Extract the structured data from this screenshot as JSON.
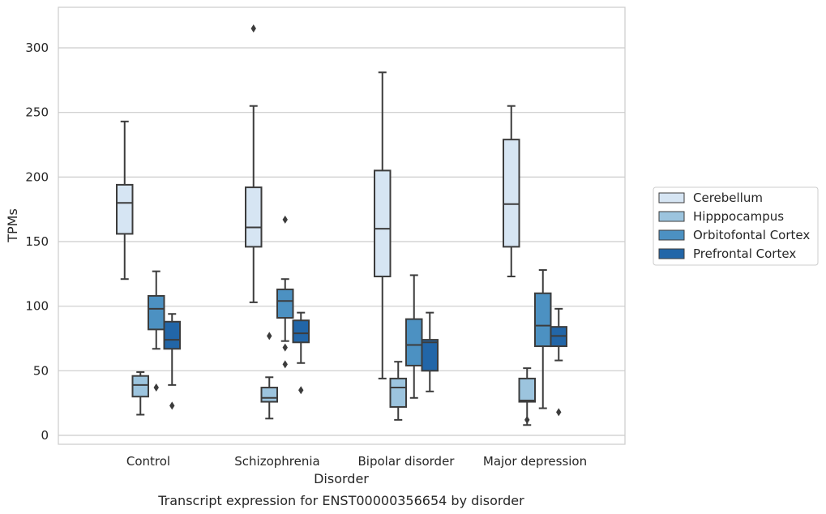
{
  "chart_data": {
    "type": "box",
    "xlabel": "Disorder",
    "ylabel": "TPMs",
    "caption": "Transcript expression for ENST00000356654 by disorder",
    "ylim": [
      -7,
      331
    ],
    "yticks": [
      0,
      50,
      100,
      150,
      200,
      250,
      300
    ],
    "grid": "horizontal",
    "legend_position": "right",
    "categories": [
      "Control",
      "Schizophrenia",
      "Bipolar disorder",
      "Major depression"
    ],
    "series": [
      {
        "name": "Cerebellum",
        "color": "#d6e5f3",
        "boxes": [
          {
            "whislo": 121,
            "q1": 156,
            "med": 180,
            "q3": 194,
            "whishi": 243,
            "fliers": []
          },
          {
            "whislo": 103,
            "q1": 146,
            "med": 161,
            "q3": 192,
            "whishi": 255,
            "fliers": [
              315
            ]
          },
          {
            "whislo": 44,
            "q1": 123,
            "med": 160,
            "q3": 205,
            "whishi": 281,
            "fliers": []
          },
          {
            "whislo": 123,
            "q1": 146,
            "med": 179,
            "q3": 229,
            "whishi": 255,
            "fliers": []
          }
        ]
      },
      {
        "name": "Hipppocampus",
        "color": "#9cc4de",
        "boxes": [
          {
            "whislo": 16,
            "q1": 30,
            "med": 39,
            "q3": 46,
            "whishi": 49,
            "fliers": []
          },
          {
            "whislo": 13,
            "q1": 26,
            "med": 29,
            "q3": 37,
            "whishi": 45,
            "fliers": [
              77
            ]
          },
          {
            "whislo": 12,
            "q1": 22,
            "med": 37,
            "q3": 44,
            "whishi": 57,
            "fliers": []
          },
          {
            "whislo": 8,
            "q1": 26,
            "med": 27,
            "q3": 44,
            "whishi": 52,
            "fliers": [
              12
            ]
          }
        ]
      },
      {
        "name": "Orbitofontal Cortex",
        "color": "#4c91c2",
        "boxes": [
          {
            "whislo": 67,
            "q1": 82,
            "med": 98,
            "q3": 108,
            "whishi": 127,
            "fliers": [
              37
            ]
          },
          {
            "whislo": 73,
            "q1": 91,
            "med": 104,
            "q3": 113,
            "whishi": 121,
            "fliers": [
              167,
              68,
              55
            ]
          },
          {
            "whislo": 29,
            "q1": 54,
            "med": 70,
            "q3": 90,
            "whishi": 124,
            "fliers": []
          },
          {
            "whislo": 21,
            "q1": 69,
            "med": 85,
            "q3": 110,
            "whishi": 128,
            "fliers": []
          }
        ]
      },
      {
        "name": "Prefrontal Cortex",
        "color": "#2266a8",
        "boxes": [
          {
            "whislo": 39,
            "q1": 67,
            "med": 74,
            "q3": 88,
            "whishi": 94,
            "fliers": [
              23
            ]
          },
          {
            "whislo": 56,
            "q1": 72,
            "med": 79,
            "q3": 89,
            "whishi": 95,
            "fliers": [
              35
            ]
          },
          {
            "whislo": 34,
            "q1": 50,
            "med": 72,
            "q3": 74,
            "whishi": 95,
            "fliers": []
          },
          {
            "whislo": 58,
            "q1": 69,
            "med": 77,
            "q3": 84,
            "whishi": 98,
            "fliers": [
              18
            ]
          }
        ]
      }
    ]
  }
}
